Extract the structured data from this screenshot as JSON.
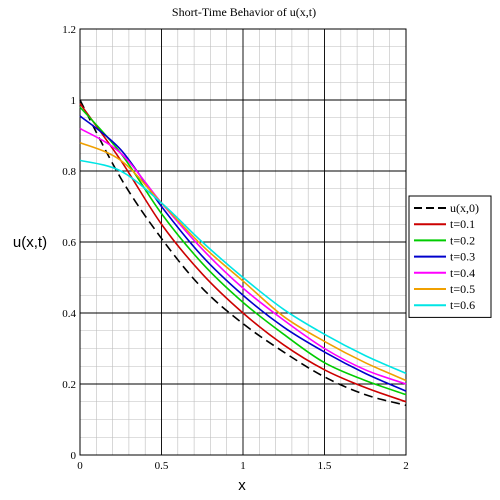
{
  "chart_data": {
    "type": "line",
    "title": "Short-Time Behavior of u(x,t)",
    "xlabel": "x",
    "ylabel": "u(x,t)",
    "xlim": [
      0,
      2
    ],
    "ylim": [
      0,
      1.2
    ],
    "xticks": [
      "0",
      "0.5",
      "1",
      "1.5",
      "2"
    ],
    "xtick_values": [
      0,
      0.5,
      1,
      1.5,
      2
    ],
    "yticks": [
      "0",
      "0.2",
      "0.4",
      "0.6",
      "0.8",
      "1",
      "1.2"
    ],
    "ytick_values": [
      0,
      0.2,
      0.4,
      0.6,
      0.8,
      1.0,
      1.2
    ],
    "grid": true,
    "legend_position": "right",
    "x": [
      0,
      0.25,
      0.5,
      0.75,
      1.0,
      1.25,
      1.5,
      1.75,
      2.0
    ],
    "series": [
      {
        "name": "u(x,0)",
        "color": "#000000",
        "dashed": true,
        "values": [
          1.0,
          0.78,
          0.61,
          0.47,
          0.37,
          0.29,
          0.22,
          0.17,
          0.14
        ]
      },
      {
        "name": "t=0.1",
        "color": "#cc0000",
        "dashed": false,
        "values": [
          0.99,
          0.83,
          0.65,
          0.51,
          0.4,
          0.31,
          0.24,
          0.19,
          0.15
        ]
      },
      {
        "name": "t=0.2",
        "color": "#00cc00",
        "dashed": false,
        "values": [
          0.98,
          0.85,
          0.68,
          0.54,
          0.43,
          0.34,
          0.26,
          0.21,
          0.17
        ]
      },
      {
        "name": "t=0.3",
        "color": "#0000cc",
        "dashed": false,
        "values": [
          0.955,
          0.86,
          0.7,
          0.56,
          0.45,
          0.36,
          0.29,
          0.23,
          0.18
        ]
      },
      {
        "name": "t=0.4",
        "color": "#ff00ff",
        "dashed": false,
        "values": [
          0.92,
          0.85,
          0.71,
          0.58,
          0.47,
          0.38,
          0.3,
          0.24,
          0.2
        ]
      },
      {
        "name": "t=0.5",
        "color": "#f0a000",
        "dashed": false,
        "values": [
          0.88,
          0.83,
          0.71,
          0.59,
          0.49,
          0.39,
          0.32,
          0.26,
          0.21
        ]
      },
      {
        "name": "t=0.6",
        "color": "#00e5e5",
        "dashed": false,
        "values": [
          0.83,
          0.8,
          0.71,
          0.6,
          0.5,
          0.41,
          0.34,
          0.28,
          0.23
        ]
      }
    ]
  }
}
